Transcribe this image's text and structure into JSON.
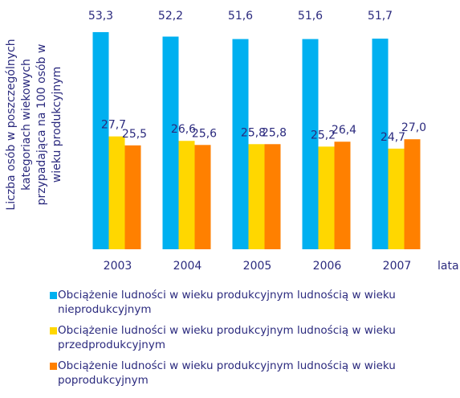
{
  "chart_data": {
    "type": "bar",
    "y_label": [
      "Liczba osób w poszczególnych",
      "kategoriach wiekowych",
      "przypadająca na 100 osób w",
      "wieku produkcyjnym"
    ],
    "x_label": "lata",
    "categories": [
      "2003",
      "2004",
      "2005",
      "2006",
      "2007"
    ],
    "ylim": [
      0,
      60
    ],
    "series": [
      {
        "name": "Obciążenie ludności w wieku produkcyjnym ludnością w wieku nieprodukcyjnym",
        "color": "#00b0f0",
        "values": [
          53.3,
          52.2,
          51.6,
          51.6,
          51.7
        ],
        "value_labels": [
          "53,3",
          "52,2",
          "51,6",
          "51,6",
          "51,7"
        ]
      },
      {
        "name": "Obciążenie ludności w wieku produkcyjnym ludnością w wieku przedprodukcyjnym",
        "color": "#ffd700",
        "values": [
          27.7,
          26.6,
          25.8,
          25.2,
          24.7
        ],
        "value_labels": [
          "27,7",
          "26,6",
          "25,8",
          "25,2",
          "24,7"
        ]
      },
      {
        "name": "Obciążenie ludności w wieku produkcyjnym ludnością w wieku poprodukcyjnym",
        "color": "#ff8000",
        "values": [
          25.5,
          25.6,
          25.8,
          26.4,
          27.0
        ],
        "value_labels": [
          "25,5",
          "25,6",
          "25,8",
          "26,4",
          "27,0"
        ]
      }
    ]
  }
}
